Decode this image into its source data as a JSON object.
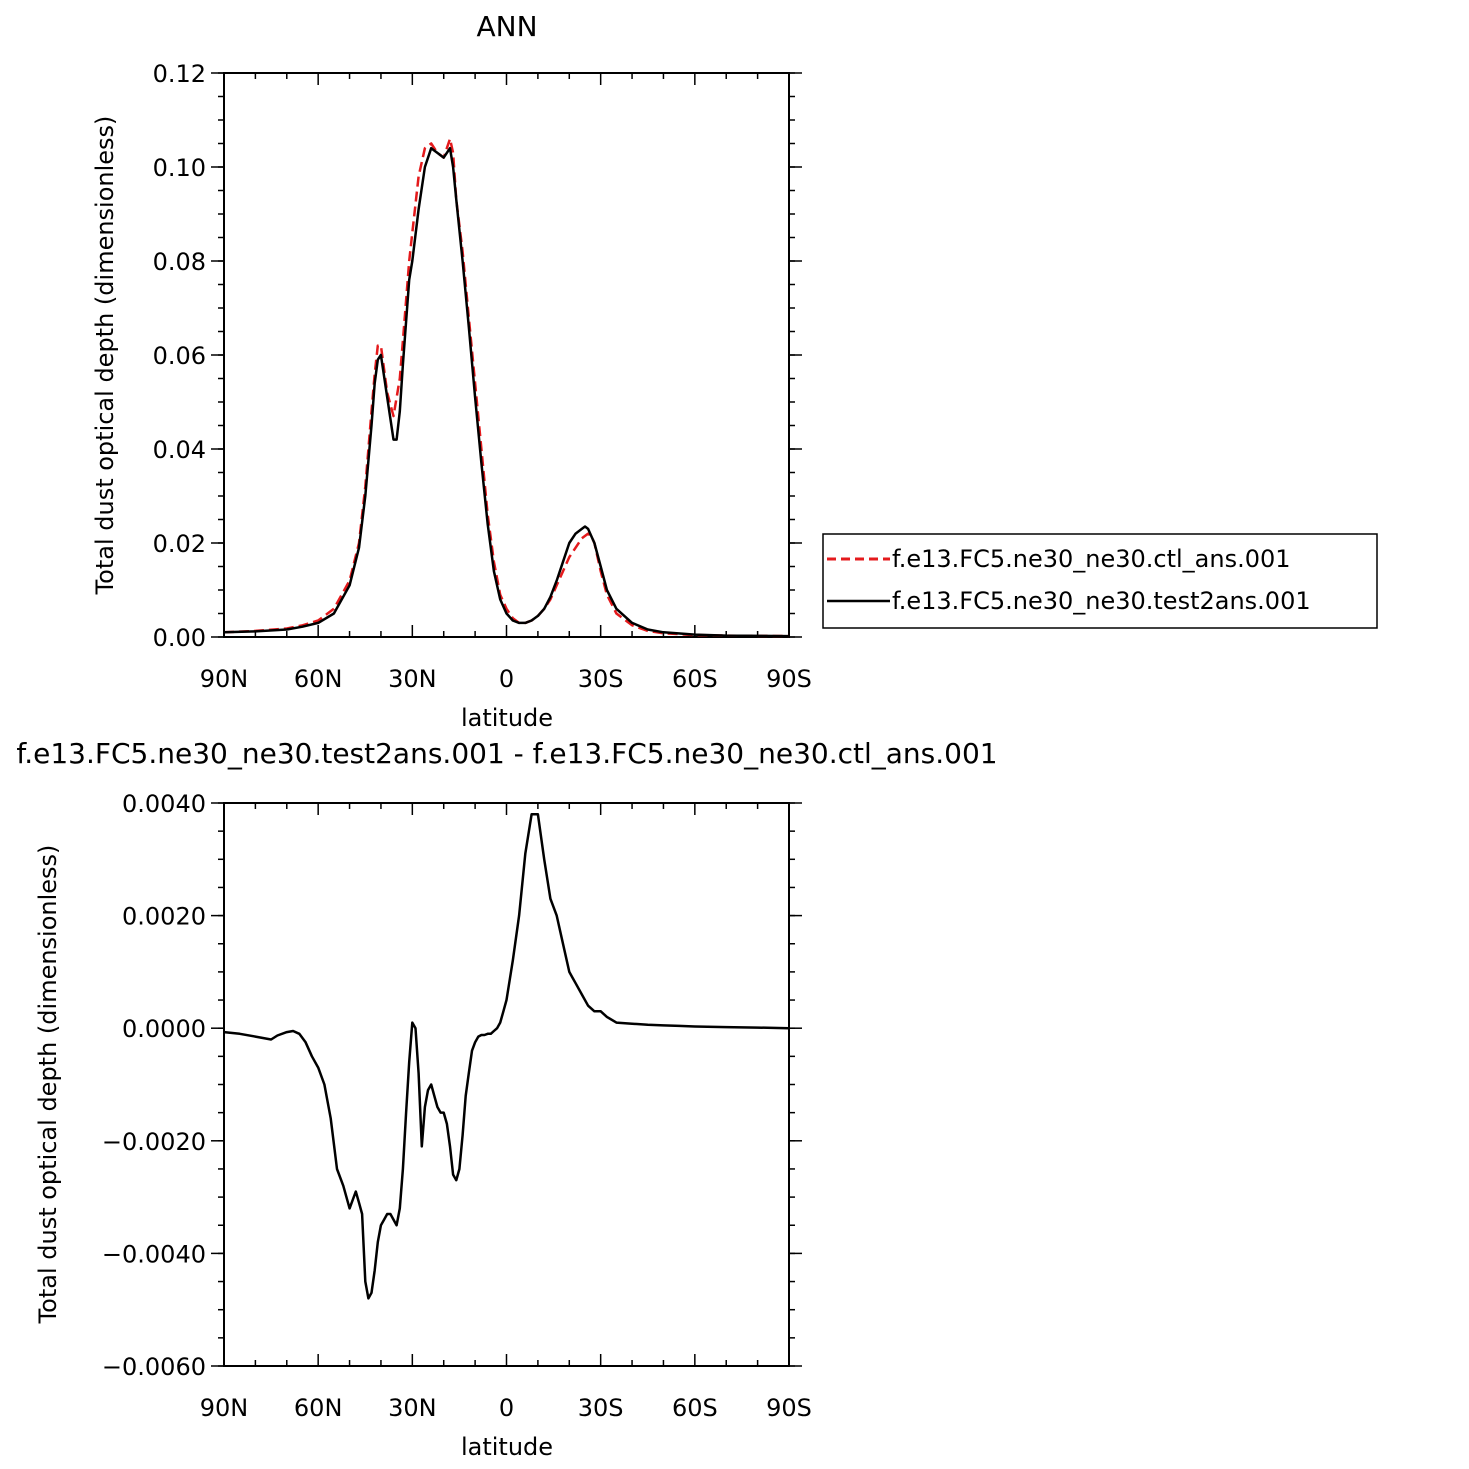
{
  "charts": [
    {
      "id": "top",
      "type": "line",
      "title": "ANN",
      "xlabel": "latitude",
      "ylabel": "Total dust optical depth (dimensionless)",
      "xlim": [
        90,
        -90
      ],
      "ylim": [
        0,
        0.12
      ],
      "xticks": [
        {
          "value": 90,
          "label": "90N"
        },
        {
          "value": 60,
          "label": "60N"
        },
        {
          "value": 30,
          "label": "30N"
        },
        {
          "value": 0,
          "label": "0"
        },
        {
          "value": -30,
          "label": "30S"
        },
        {
          "value": -60,
          "label": "60S"
        },
        {
          "value": -90,
          "label": "90S"
        }
      ],
      "yticks": [
        {
          "value": 0,
          "label": "0.00"
        },
        {
          "value": 0.02,
          "label": "0.02"
        },
        {
          "value": 0.04,
          "label": "0.04"
        },
        {
          "value": 0.06,
          "label": "0.06"
        },
        {
          "value": 0.08,
          "label": "0.08"
        },
        {
          "value": 0.1,
          "label": "0.10"
        },
        {
          "value": 0.12,
          "label": "0.12"
        }
      ],
      "legend": {
        "placement": "right",
        "entries": [
          {
            "label": "f.e13.FC5.ne30_ne30.ctl_ans.001",
            "color": "#e41a1c",
            "dash": "dashed"
          },
          {
            "label": "f.e13.FC5.ne30_ne30.test2ans.001",
            "color": "#000000",
            "dash": "solid"
          }
        ]
      },
      "series": [
        {
          "name": "f.e13.FC5.ne30_ne30.ctl_ans.001",
          "color": "#e41a1c",
          "dash": "dashed",
          "x": [
            90,
            80,
            70,
            65,
            60,
            55,
            50,
            47,
            45,
            43,
            42,
            41,
            40,
            38,
            36,
            34,
            33,
            31,
            30,
            28,
            26,
            24,
            22,
            20,
            18,
            17,
            16,
            14,
            12,
            10,
            8,
            6,
            4,
            2,
            0,
            -2,
            -4,
            -6,
            -8,
            -10,
            -12,
            -14,
            -16,
            -18,
            -20,
            -22,
            -24,
            -26,
            -27,
            -28,
            -30,
            -32,
            -35,
            -40,
            -45,
            -50,
            -60,
            -70,
            -90
          ],
          "y": [
            0.001,
            0.0013,
            0.0018,
            0.0025,
            0.0035,
            0.006,
            0.012,
            0.02,
            0.032,
            0.048,
            0.056,
            0.062,
            0.062,
            0.052,
            0.047,
            0.055,
            0.063,
            0.08,
            0.086,
            0.098,
            0.104,
            0.105,
            0.103,
            0.102,
            0.106,
            0.103,
            0.093,
            0.082,
            0.068,
            0.054,
            0.04,
            0.026,
            0.016,
            0.009,
            0.006,
            0.004,
            0.003,
            0.003,
            0.0035,
            0.0045,
            0.006,
            0.008,
            0.011,
            0.014,
            0.017,
            0.019,
            0.021,
            0.022,
            0.0215,
            0.02,
            0.014,
            0.009,
            0.005,
            0.0025,
            0.0013,
            0.0008,
            0.0004,
            0.0003,
            0.0002
          ]
        },
        {
          "name": "f.e13.FC5.ne30_ne30.test2ans.001",
          "color": "#000000",
          "dash": "solid",
          "x": [
            90,
            80,
            70,
            65,
            60,
            55,
            50,
            47,
            45,
            43,
            42,
            41,
            40,
            38,
            36,
            35,
            34,
            33,
            31,
            30,
            28,
            26,
            24,
            22,
            20,
            18,
            17,
            16,
            14,
            12,
            10,
            8,
            6,
            4,
            2,
            0,
            -2,
            -4,
            -6,
            -8,
            -10,
            -12,
            -14,
            -16,
            -18,
            -20,
            -22,
            -24,
            -25,
            -26,
            -28,
            -30,
            -32,
            -35,
            -40,
            -45,
            -50,
            -60,
            -70,
            -90
          ],
          "y": [
            0.001,
            0.0012,
            0.0016,
            0.0022,
            0.003,
            0.005,
            0.011,
            0.019,
            0.03,
            0.045,
            0.054,
            0.059,
            0.06,
            0.051,
            0.042,
            0.042,
            0.048,
            0.058,
            0.076,
            0.08,
            0.091,
            0.1,
            0.104,
            0.103,
            0.102,
            0.104,
            0.1,
            0.093,
            0.08,
            0.066,
            0.051,
            0.037,
            0.024,
            0.014,
            0.008,
            0.005,
            0.0035,
            0.003,
            0.003,
            0.0035,
            0.0045,
            0.006,
            0.0085,
            0.012,
            0.016,
            0.02,
            0.022,
            0.023,
            0.0235,
            0.023,
            0.02,
            0.015,
            0.01,
            0.006,
            0.003,
            0.0016,
            0.001,
            0.0005,
            0.0003,
            0.0002
          ]
        }
      ]
    },
    {
      "id": "bottom",
      "type": "line",
      "title": "f.e13.FC5.ne30_ne30.test2ans.001 - f.e13.FC5.ne30_ne30.ctl_ans.001",
      "xlabel": "latitude",
      "ylabel": "Total dust optical depth (dimensionless)",
      "xlim": [
        90,
        -90
      ],
      "ylim": [
        -0.006,
        0.004
      ],
      "xticks": [
        {
          "value": 90,
          "label": "90N"
        },
        {
          "value": 60,
          "label": "60N"
        },
        {
          "value": 30,
          "label": "30N"
        },
        {
          "value": 0,
          "label": "0"
        },
        {
          "value": -30,
          "label": "30S"
        },
        {
          "value": -60,
          "label": "60S"
        },
        {
          "value": -90,
          "label": "90S"
        }
      ],
      "yticks": [
        {
          "value": -0.006,
          "label": "−0.0060"
        },
        {
          "value": -0.004,
          "label": "−0.0040"
        },
        {
          "value": -0.002,
          "label": "−0.0020"
        },
        {
          "value": 0,
          "label": "0.0000"
        },
        {
          "value": 0.002,
          "label": "0.0020"
        },
        {
          "value": 0.004,
          "label": "0.0040"
        }
      ],
      "series": [
        {
          "color": "#000000",
          "dash": "solid",
          "x": [
            90,
            85,
            80,
            75,
            73,
            70,
            68,
            66,
            64,
            62,
            60,
            58,
            56,
            54,
            52,
            50,
            48,
            47,
            46,
            45,
            44,
            43,
            42,
            41,
            40,
            39,
            38,
            37,
            36,
            35,
            34,
            33,
            32,
            31,
            30,
            29,
            28,
            27,
            26,
            25,
            24,
            23,
            22,
            21,
            20,
            19,
            18,
            17,
            16,
            15,
            14,
            13,
            12,
            11,
            10,
            9,
            8,
            7,
            6,
            5,
            4,
            3,
            2,
            1,
            0,
            -2,
            -4,
            -6,
            -8,
            -10,
            -12,
            -14,
            -16,
            -18,
            -20,
            -21,
            -22,
            -24,
            -26,
            -28,
            -30,
            -32,
            -35,
            -40,
            -45,
            -50,
            -55,
            -60,
            -70,
            -80,
            -90
          ],
          "y": [
            -7e-05,
            -0.0001,
            -0.00015,
            -0.0002,
            -0.00013,
            -7e-05,
            -5e-05,
            -0.0001,
            -0.00025,
            -0.0005,
            -0.0007,
            -0.001,
            -0.0016,
            -0.0025,
            -0.0028,
            -0.0032,
            -0.0029,
            -0.0031,
            -0.0033,
            -0.0045,
            -0.0048,
            -0.0047,
            -0.0043,
            -0.0038,
            -0.0035,
            -0.0034,
            -0.0033,
            -0.0033,
            -0.0034,
            -0.0035,
            -0.0032,
            -0.0025,
            -0.0015,
            -0.0006,
            0.0001,
            0.0,
            -0.0008,
            -0.0021,
            -0.0014,
            -0.0011,
            -0.001,
            -0.0012,
            -0.0014,
            -0.0015,
            -0.0015,
            -0.0017,
            -0.0021,
            -0.0026,
            -0.0027,
            -0.0025,
            -0.0019,
            -0.0012,
            -0.0008,
            -0.0004,
            -0.00025,
            -0.00015,
            -0.00012,
            -0.00012,
            -0.0001,
            -0.0001,
            -5e-05,
            0.0,
            0.0001,
            0.0003,
            0.0005,
            0.0012,
            0.002,
            0.0031,
            0.0038,
            0.0038,
            0.003,
            0.0023,
            0.002,
            0.0015,
            0.001,
            0.0009,
            0.0008,
            0.0006,
            0.0004,
            0.0003,
            0.0003,
            0.0002,
            0.0001,
            8e-05,
            6e-05,
            5e-05,
            4e-05,
            3e-05,
            2e-05,
            1e-05,
            0.0
          ]
        }
      ]
    }
  ]
}
